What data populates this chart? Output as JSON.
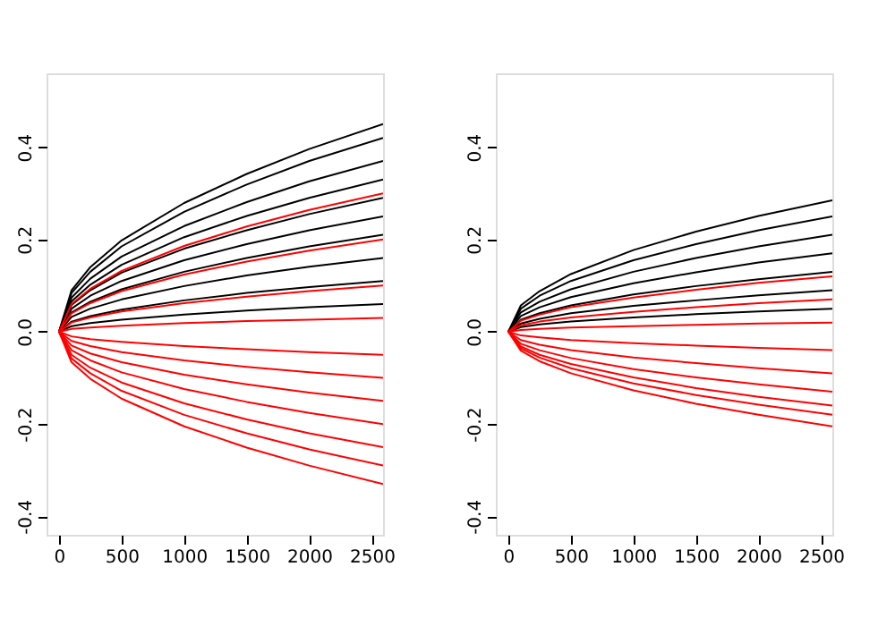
{
  "chart_data": [
    {
      "type": "line",
      "x": [
        0,
        100,
        250,
        500,
        1000,
        1500,
        2000,
        2590
      ],
      "xlim": [
        -100,
        2590
      ],
      "ylim": [
        -0.44,
        0.56
      ],
      "xticks": [
        0,
        500,
        1000,
        1500,
        2000,
        2500
      ],
      "yticks": [
        -0.4,
        -0.2,
        {
          "value": 0,
          "label": "0.0"
        },
        0.2,
        0.4
      ],
      "grid": false,
      "legend": false,
      "series": [
        {
          "color": "#000000",
          "values": [
            0,
            0.09,
            0.14,
            0.198,
            0.279,
            0.342,
            0.396,
            0.45
          ]
        },
        {
          "color": "#000000",
          "values": [
            0,
            0.084,
            0.13,
            0.185,
            0.26,
            0.319,
            0.37,
            0.42
          ]
        },
        {
          "color": "#000000",
          "values": [
            0,
            0.074,
            0.115,
            0.163,
            0.229,
            0.281,
            0.326,
            0.37
          ]
        },
        {
          "color": "#000000",
          "values": [
            0,
            0.066,
            0.102,
            0.145,
            0.205,
            0.251,
            0.29,
            0.33
          ]
        },
        {
          "color": "#000000",
          "values": [
            0,
            0.058,
            0.09,
            0.128,
            0.18,
            0.22,
            0.255,
            0.29
          ]
        },
        {
          "color": "#000000",
          "values": [
            0,
            0.05,
            0.078,
            0.11,
            0.155,
            0.19,
            0.22,
            0.25
          ]
        },
        {
          "color": "#000000",
          "values": [
            0,
            0.042,
            0.065,
            0.092,
            0.13,
            0.16,
            0.185,
            0.21
          ]
        },
        {
          "color": "#000000",
          "values": [
            0,
            0.032,
            0.05,
            0.07,
            0.099,
            0.122,
            0.141,
            0.16
          ]
        },
        {
          "color": "#000000",
          "values": [
            0,
            0.022,
            0.034,
            0.048,
            0.068,
            0.084,
            0.097,
            0.11
          ]
        },
        {
          "color": "#000000",
          "values": [
            0,
            0.012,
            0.019,
            0.026,
            0.037,
            0.046,
            0.053,
            0.06
          ]
        },
        {
          "color": "#ff0000",
          "values": [
            0,
            0.06,
            0.093,
            0.132,
            0.186,
            0.228,
            0.264,
            0.3
          ]
        },
        {
          "color": "#ff0000",
          "values": [
            0,
            0.04,
            0.062,
            0.088,
            0.124,
            0.152,
            0.176,
            0.2
          ]
        },
        {
          "color": "#ff0000",
          "values": [
            0,
            0.02,
            0.031,
            0.044,
            0.062,
            0.076,
            0.088,
            0.1
          ]
        },
        {
          "color": "#ff0000",
          "values": [
            0,
            0.006,
            0.009,
            0.013,
            0.019,
            0.023,
            0.026,
            0.03
          ]
        },
        {
          "color": "#ff0000",
          "values": [
            0,
            -0.01,
            -0.016,
            -0.022,
            -0.031,
            -0.038,
            -0.044,
            -0.05
          ]
        },
        {
          "color": "#ff0000",
          "values": [
            0,
            -0.02,
            -0.031,
            -0.044,
            -0.062,
            -0.076,
            -0.088,
            -0.1
          ]
        },
        {
          "color": "#ff0000",
          "values": [
            0,
            -0.03,
            -0.047,
            -0.066,
            -0.093,
            -0.114,
            -0.132,
            -0.15
          ]
        },
        {
          "color": "#ff0000",
          "values": [
            0,
            -0.04,
            -0.062,
            -0.088,
            -0.124,
            -0.152,
            -0.176,
            -0.2
          ]
        },
        {
          "color": "#ff0000",
          "values": [
            0,
            -0.05,
            -0.078,
            -0.11,
            -0.155,
            -0.19,
            -0.22,
            -0.25
          ]
        },
        {
          "color": "#ff0000",
          "values": [
            0,
            -0.058,
            -0.09,
            -0.128,
            -0.18,
            -0.22,
            -0.255,
            -0.29
          ]
        },
        {
          "color": "#ff0000",
          "values": [
            0,
            -0.066,
            -0.102,
            -0.145,
            -0.205,
            -0.251,
            -0.29,
            -0.33
          ]
        }
      ]
    },
    {
      "type": "line",
      "x": [
        0,
        100,
        250,
        500,
        1000,
        1500,
        2000,
        2590
      ],
      "xlim": [
        -100,
        2590
      ],
      "ylim": [
        -0.44,
        0.56
      ],
      "xticks": [
        0,
        500,
        1000,
        1500,
        2000,
        2500
      ],
      "yticks": [
        -0.4,
        -0.2,
        {
          "value": 0,
          "label": "0.0"
        },
        0.2,
        0.4
      ],
      "grid": false,
      "legend": false,
      "series": [
        {
          "color": "#000000",
          "values": [
            0,
            0.057,
            0.088,
            0.125,
            0.177,
            0.217,
            0.251,
            0.285
          ]
        },
        {
          "color": "#000000",
          "values": [
            0,
            0.05,
            0.078,
            0.11,
            0.155,
            0.19,
            0.22,
            0.25
          ]
        },
        {
          "color": "#000000",
          "values": [
            0,
            0.042,
            0.065,
            0.092,
            0.13,
            0.16,
            0.185,
            0.21
          ]
        },
        {
          "color": "#000000",
          "values": [
            0,
            0.034,
            0.053,
            0.075,
            0.105,
            0.129,
            0.15,
            0.17
          ]
        },
        {
          "color": "#000000",
          "values": [
            0,
            0.026,
            0.04,
            0.057,
            0.081,
            0.099,
            0.114,
            0.13
          ]
        },
        {
          "color": "#000000",
          "values": [
            0,
            0.018,
            0.028,
            0.04,
            0.056,
            0.068,
            0.079,
            0.09
          ]
        },
        {
          "color": "#000000",
          "values": [
            0,
            0.01,
            0.016,
            0.022,
            0.031,
            0.038,
            0.044,
            0.05
          ]
        },
        {
          "color": "#ff0000",
          "values": [
            0,
            0.024,
            0.037,
            0.053,
            0.074,
            0.091,
            0.106,
            0.12
          ]
        },
        {
          "color": "#ff0000",
          "values": [
            0,
            0.014,
            0.022,
            0.031,
            0.043,
            0.053,
            0.062,
            0.07
          ]
        },
        {
          "color": "#ff0000",
          "values": [
            0,
            0.004,
            0.006,
            0.009,
            0.012,
            0.015,
            0.018,
            0.02
          ]
        },
        {
          "color": "#ff0000",
          "values": [
            0,
            -0.008,
            -0.012,
            -0.018,
            -0.025,
            -0.03,
            -0.035,
            -0.04
          ]
        },
        {
          "color": "#ff0000",
          "values": [
            0,
            -0.018,
            -0.028,
            -0.04,
            -0.056,
            -0.068,
            -0.079,
            -0.09
          ]
        },
        {
          "color": "#ff0000",
          "values": [
            0,
            -0.026,
            -0.04,
            -0.057,
            -0.081,
            -0.099,
            -0.114,
            -0.13
          ]
        },
        {
          "color": "#ff0000",
          "values": [
            0,
            -0.032,
            -0.05,
            -0.07,
            -0.099,
            -0.122,
            -0.141,
            -0.16
          ]
        },
        {
          "color": "#ff0000",
          "values": [
            0,
            -0.036,
            -0.056,
            -0.079,
            -0.112,
            -0.137,
            -0.158,
            -0.18
          ]
        },
        {
          "color": "#ff0000",
          "values": [
            0,
            -0.041,
            -0.064,
            -0.09,
            -0.127,
            -0.156,
            -0.18,
            -0.205
          ]
        }
      ]
    }
  ]
}
